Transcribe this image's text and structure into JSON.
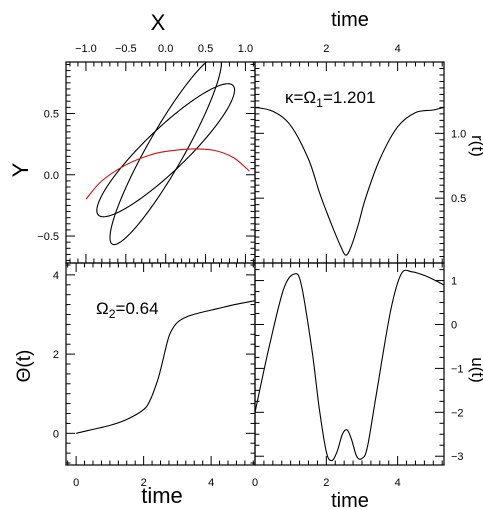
{
  "chart_data": [
    {
      "type": "line",
      "panel": "top-left",
      "xlabel": "X",
      "ylabel": "Y",
      "xlim": [
        -1.25,
        1.12
      ],
      "ylim": [
        -0.72,
        0.92
      ],
      "x_ticks": [
        -1.0,
        -0.5,
        0.0,
        0.5,
        1.0
      ],
      "x_tick_labels": [
        "−1.0",
        "−0.5",
        "0.0",
        "0.5",
        "1.0"
      ],
      "y_ticks": [
        -0.5,
        0.0,
        0.5
      ],
      "y_tick_labels": [
        "−0.5",
        "0.0",
        "0.5"
      ],
      "series": [
        {
          "style": "black",
          "kind": "ellipse",
          "center": [
            0.0,
            0.2
          ],
          "semi_major": 1.0,
          "semi_minor": 0.2,
          "angle_deg": 31
        },
        {
          "style": "black",
          "kind": "ellipse",
          "center": [
            0.0,
            0.2
          ],
          "semi_major": 1.02,
          "semi_minor": 0.2,
          "angle_deg": 48
        },
        {
          "style": "red",
          "kind": "arc",
          "x": [
            -1.0,
            -0.8,
            -0.5,
            -0.2,
            0.0,
            0.3,
            0.6,
            0.85,
            1.05
          ],
          "y": [
            -0.2,
            -0.05,
            0.08,
            0.16,
            0.19,
            0.21,
            0.2,
            0.14,
            0.03
          ]
        }
      ]
    },
    {
      "type": "line",
      "panel": "top-right",
      "xlabel": "time",
      "ylabel": "r(t)",
      "xlim": [
        0.0,
        5.3
      ],
      "ylim": [
        0.0,
        1.55
      ],
      "x_ticks": [
        2,
        4
      ],
      "x_tick_labels": [
        "2",
        "4"
      ],
      "y_ticks": [
        0.5,
        1.0
      ],
      "y_tick_labels": [
        "0.5",
        "1.0"
      ],
      "annotation": "κ=Ω1=1.201",
      "series": [
        {
          "x": [
            0.0,
            0.5,
            1.0,
            1.5,
            1.8,
            2.0,
            2.2,
            2.4,
            2.55,
            2.7,
            2.9,
            3.1,
            3.5,
            4.0,
            4.5,
            5.0,
            5.3
          ],
          "y": [
            1.2,
            1.17,
            1.06,
            0.8,
            0.55,
            0.4,
            0.26,
            0.13,
            0.06,
            0.13,
            0.3,
            0.5,
            0.8,
            1.05,
            1.16,
            1.18,
            1.2
          ]
        }
      ]
    },
    {
      "type": "line",
      "panel": "bottom-left",
      "xlabel": "time",
      "ylabel": "Θ(t)",
      "xlim": [
        -0.3,
        5.3
      ],
      "ylim": [
        -0.8,
        4.3
      ],
      "x_ticks": [
        0,
        2,
        4
      ],
      "x_tick_labels": [
        "0",
        "2",
        "4"
      ],
      "y_ticks": [
        0,
        2,
        4
      ],
      "y_tick_labels": [
        "0",
        "2",
        "4"
      ],
      "annotation": "Ω2=0.64",
      "series": [
        {
          "x": [
            0.0,
            0.5,
            1.0,
            1.5,
            2.0,
            2.2,
            2.4,
            2.5,
            2.6,
            2.7,
            2.8,
            3.0,
            3.3,
            3.7,
            4.2,
            4.7,
            5.3
          ],
          "y": [
            0.0,
            0.1,
            0.2,
            0.35,
            0.6,
            0.85,
            1.3,
            1.6,
            1.95,
            2.3,
            2.55,
            2.8,
            2.95,
            3.05,
            3.15,
            3.25,
            3.35
          ]
        }
      ]
    },
    {
      "type": "line",
      "panel": "bottom-right",
      "xlabel": "time",
      "ylabel": "u(t)",
      "xlim": [
        0.0,
        5.3
      ],
      "ylim": [
        -3.2,
        1.4
      ],
      "x_ticks": [
        0,
        2,
        4
      ],
      "x_tick_labels": [
        "0",
        "2",
        "4"
      ],
      "y_ticks": [
        -3,
        -2,
        -1,
        0,
        1
      ],
      "y_tick_labels": [
        "−3",
        "−2",
        "−1",
        "0",
        "1"
      ],
      "series": [
        {
          "x": [
            0.0,
            0.4,
            0.8,
            1.1,
            1.3,
            1.6,
            1.8,
            2.0,
            2.15,
            2.3,
            2.45,
            2.58,
            2.7,
            2.85,
            3.0,
            3.15,
            3.4,
            3.8,
            4.1,
            4.4,
            4.8,
            5.3
          ],
          "y": [
            -2.0,
            -0.5,
            0.8,
            1.15,
            0.9,
            -0.6,
            -1.9,
            -2.9,
            -3.1,
            -2.9,
            -2.5,
            -2.4,
            -2.6,
            -3.0,
            -3.05,
            -2.8,
            -1.6,
            0.3,
            1.15,
            1.2,
            1.1,
            0.9
          ]
        }
      ]
    }
  ]
}
